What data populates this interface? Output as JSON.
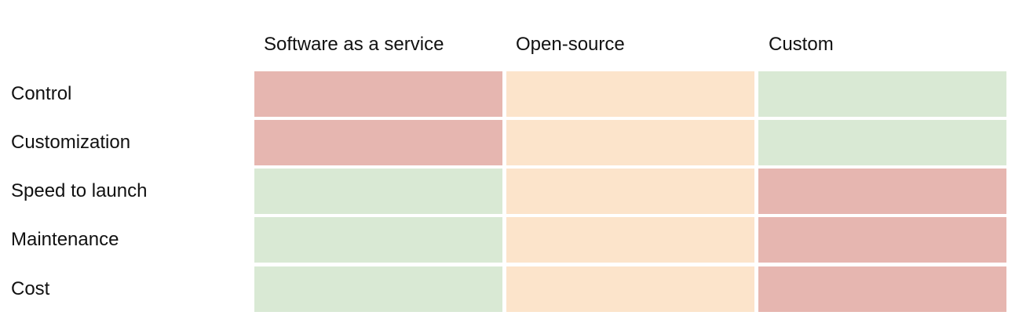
{
  "columns": [
    "Software as a service",
    "Open-source",
    "Custom"
  ],
  "rows": [
    {
      "label": "Control",
      "ratings": [
        "red",
        "orange",
        "green"
      ]
    },
    {
      "label": "Customization",
      "ratings": [
        "red",
        "orange",
        "green"
      ]
    },
    {
      "label": "Speed to launch",
      "ratings": [
        "green",
        "orange",
        "red"
      ]
    },
    {
      "label": "Maintenance",
      "ratings": [
        "green",
        "orange",
        "red"
      ]
    },
    {
      "label": "Cost",
      "ratings": [
        "green",
        "orange",
        "red"
      ]
    }
  ],
  "colors": {
    "red": "#e6b6b0",
    "orange": "#fce4cb",
    "green": "#d9e9d4"
  }
}
